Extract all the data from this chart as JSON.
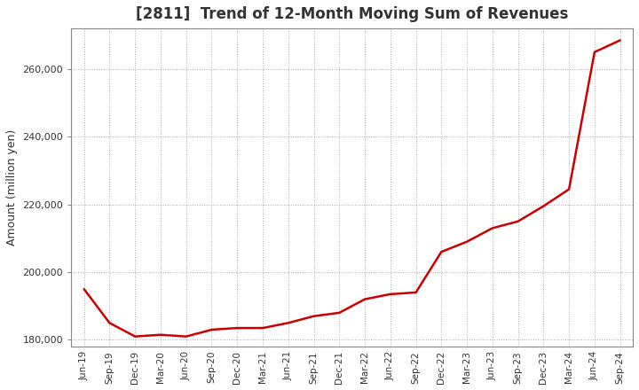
{
  "title": "[2811]  Trend of 12-Month Moving Sum of Revenues",
  "ylabel": "Amount (million yen)",
  "line_color": "#cc0000",
  "background_color": "#ffffff",
  "grid_color": "#aaaaaa",
  "title_color": "#333333",
  "ylim": [
    178000,
    272000
  ],
  "yticks": [
    180000,
    200000,
    220000,
    240000,
    260000
  ],
  "x_labels": [
    "Jun-19",
    "Sep-19",
    "Dec-19",
    "Mar-20",
    "Jun-20",
    "Sep-20",
    "Dec-20",
    "Mar-21",
    "Jun-21",
    "Sep-21",
    "Dec-21",
    "Mar-22",
    "Jun-22",
    "Sep-22",
    "Dec-22",
    "Mar-23",
    "Jun-23",
    "Sep-23",
    "Dec-23",
    "Mar-24",
    "Jun-24",
    "Sep-24"
  ],
  "values": [
    195000,
    185000,
    181000,
    181500,
    181000,
    183000,
    183500,
    183500,
    185000,
    187000,
    188000,
    192000,
    193500,
    194000,
    206000,
    209000,
    213000,
    215000,
    219500,
    224500,
    265000,
    268500
  ]
}
